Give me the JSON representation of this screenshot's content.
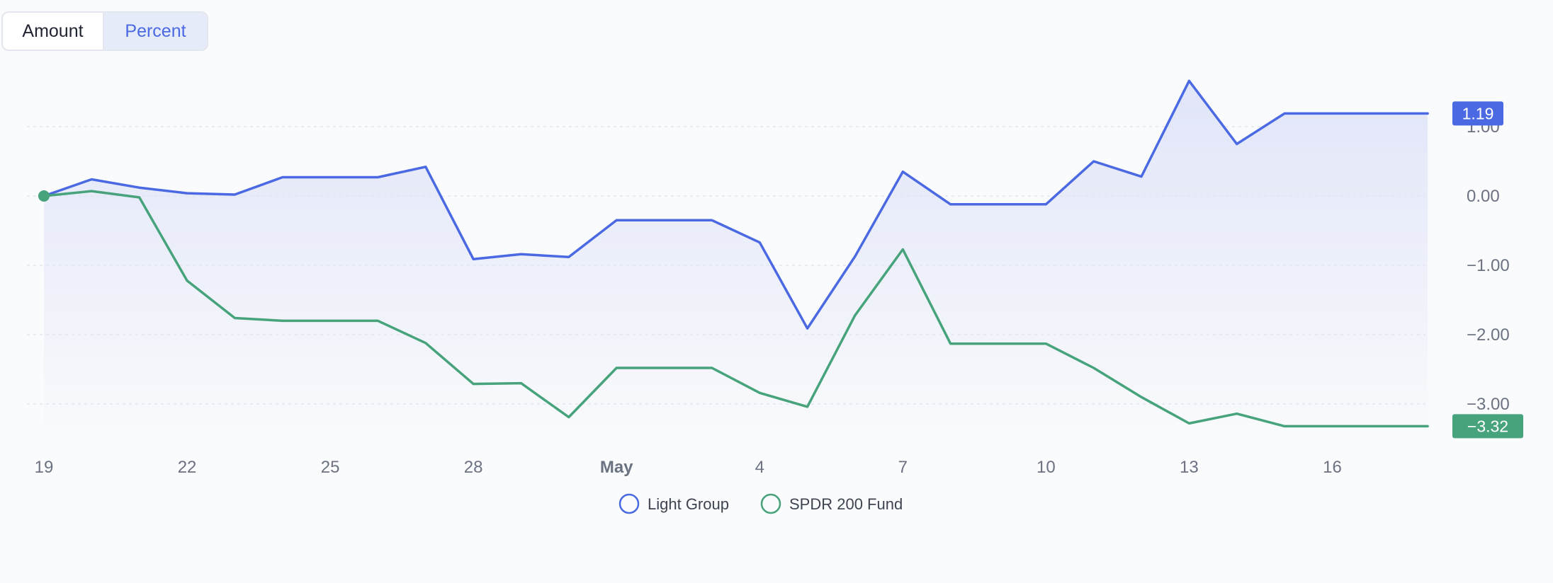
{
  "toggle": {
    "amount_label": "Amount",
    "percent_label": "Percent",
    "selected": "Percent"
  },
  "colors": {
    "series1": "#4a69e2",
    "series2": "#47a37b",
    "area_top": "#dfe4f8",
    "grid": "#e3e6ee"
  },
  "chart_data": {
    "type": "line",
    "x_tick_labels": [
      "19",
      "22",
      "25",
      "28",
      "May",
      "4",
      "7",
      "10",
      "13",
      "16"
    ],
    "x": [
      "Apr 19",
      "Apr 20",
      "Apr 21",
      "Apr 22",
      "Apr 23",
      "Apr 24",
      "Apr 25",
      "Apr 26",
      "Apr 27",
      "Apr 28",
      "Apr 29",
      "Apr 30",
      "May 1",
      "May 2",
      "May 3",
      "May 4",
      "May 5",
      "May 6",
      "May 7",
      "May 8",
      "May 9",
      "May 10",
      "May 11",
      "May 12",
      "May 13",
      "May 14",
      "May 15",
      "May 16",
      "May 17",
      "May 18"
    ],
    "series": [
      {
        "name": "Light Group",
        "values": [
          0.0,
          0.24,
          0.12,
          0.04,
          0.02,
          0.27,
          0.27,
          0.27,
          0.42,
          -0.91,
          -0.84,
          -0.88,
          -0.35,
          -0.35,
          -0.35,
          -0.67,
          -1.91,
          -0.87,
          0.35,
          -0.12,
          -0.12,
          -0.12,
          0.5,
          0.28,
          1.66,
          0.75,
          1.19,
          1.19,
          1.19,
          1.19
        ],
        "end_label": "1.19"
      },
      {
        "name": "SPDR 200 Fund",
        "values": [
          0.0,
          0.07,
          -0.02,
          -1.22,
          -1.76,
          -1.8,
          -1.8,
          -1.8,
          -2.12,
          -2.71,
          -2.7,
          -3.19,
          -2.48,
          -2.48,
          -2.48,
          -2.84,
          -3.04,
          -1.72,
          -0.77,
          -2.13,
          -2.13,
          -2.13,
          -2.48,
          -2.9,
          -3.28,
          -3.14,
          -3.32,
          -3.32,
          -3.32,
          -3.32
        ],
        "end_label": "−3.32"
      }
    ],
    "y_ticks": [
      1.0,
      0.0,
      -1.0,
      -2.0,
      -3.0
    ],
    "y_tick_labels": [
      "1.00",
      "0.00",
      "−1.00",
      "−2.00",
      "−3.00"
    ],
    "ylim": [
      -3.6,
      1.9
    ],
    "grid": true,
    "legend_position": "bottom-center"
  }
}
